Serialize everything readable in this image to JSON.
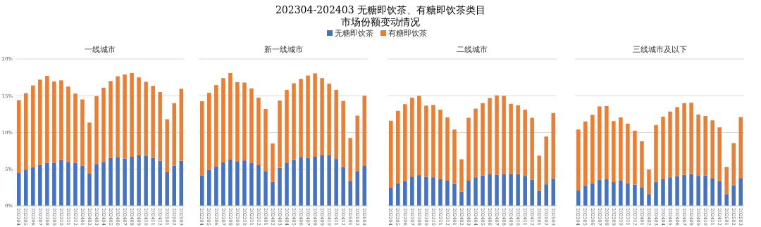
{
  "chart_data": [
    {
      "type": "other",
      "title": "202304-202403 无糖即饮茶、有糖即饮茶类目",
      "subtitle": "市场份额变动情况"
    },
    {
      "type": "bar",
      "title": "一线城市",
      "stacked": true,
      "grid": "y",
      "legend": "top",
      "categories": [
        "202304",
        "202305",
        "202306",
        "202307",
        "202308",
        "202309",
        "202310",
        "202311",
        "202312",
        "202401",
        "202402",
        "202403",
        "202404",
        "202405",
        "202406",
        "202407",
        "202408",
        "202409",
        "202410",
        "202411",
        "202412",
        "202501",
        "202502",
        "202503"
      ],
      "ylim": [
        0,
        20
      ],
      "yticks": [
        {
          "value": 0,
          "label": "0%"
        },
        {
          "value": 5,
          "label": "5%"
        },
        {
          "value": 10,
          "label": "10%"
        },
        {
          "value": 15,
          "label": "15%"
        },
        {
          "value": 20,
          "label": "20%"
        }
      ],
      "series": [
        {
          "name": "无糖即饮茶",
          "color": "#4472c4",
          "values": [
            4.5,
            4.95,
            5.25,
            5.6,
            5.85,
            5.9,
            6.25,
            6.0,
            5.85,
            5.5,
            4.45,
            5.65,
            6.0,
            6.55,
            6.6,
            6.45,
            6.7,
            6.9,
            6.8,
            6.55,
            6.15,
            4.6,
            5.5,
            6.15
          ]
        },
        {
          "name": "有糖即饮茶",
          "color": "#ed7d31",
          "values": [
            9.9,
            10.4,
            11.15,
            11.6,
            11.85,
            11.05,
            10.85,
            10.25,
            9.45,
            9.0,
            6.9,
            9.3,
            10.1,
            10.45,
            11.05,
            11.45,
            11.4,
            10.6,
            10.1,
            9.8,
            9.35,
            7.2,
            8.5,
            9.8
          ]
        }
      ]
    },
    {
      "type": "bar",
      "title": "新一线城市",
      "stacked": true,
      "grid": "y",
      "tick_labels": "x",
      "categories": [
        "202304",
        "202305",
        "202306",
        "202307",
        "202308",
        "202309",
        "202310",
        "202311",
        "202312",
        "202401",
        "202402",
        "202403",
        "202404",
        "202405",
        "202406",
        "202407",
        "202408",
        "202409",
        "202410",
        "202411",
        "202412",
        "202501",
        "202502",
        "202503"
      ],
      "ylim": [
        0,
        20
      ],
      "yticks": [
        0,
        5,
        10,
        15,
        20
      ],
      "series": [
        {
          "color": "#4472c4",
          "values": [
            4.15,
            4.9,
            5.4,
            5.95,
            6.35,
            6.1,
            6.2,
            5.9,
            5.55,
            4.75,
            3.3,
            5.2,
            5.9,
            6.25,
            6.6,
            6.55,
            6.7,
            6.9,
            6.9,
            6.4,
            5.3,
            3.35,
            4.7,
            5.45
          ]
        },
        {
          "color": "#ed7d31",
          "values": [
            10.1,
            10.5,
            11.05,
            11.45,
            11.75,
            10.75,
            10.6,
            10.1,
            9.2,
            8.45,
            5.2,
            9.15,
            9.9,
            10.45,
            10.7,
            11.2,
            11.35,
            10.5,
            9.75,
            9.4,
            9.0,
            5.9,
            7.6,
            9.55
          ]
        }
      ]
    },
    {
      "type": "bar",
      "title": "二线城市",
      "stacked": true,
      "grid": "y",
      "tick_labels": "x",
      "categories": [
        "202304",
        "202305",
        "202306",
        "202307",
        "202308",
        "202309",
        "202310",
        "202311",
        "202312",
        "202401",
        "202402",
        "202403",
        "202404",
        "202405",
        "202406",
        "202407",
        "202408",
        "202409",
        "202410",
        "202411",
        "202412",
        "202501",
        "202502",
        "202503"
      ],
      "ylim": [
        0,
        20
      ],
      "yticks": [
        0,
        5,
        10,
        15,
        20
      ],
      "series": [
        {
          "color": "#4472c4",
          "values": [
            2.5,
            3.1,
            3.4,
            4.0,
            4.2,
            3.95,
            3.9,
            3.65,
            3.45,
            3.0,
            1.95,
            3.45,
            3.9,
            4.15,
            4.3,
            4.25,
            4.3,
            4.35,
            4.35,
            4.1,
            3.55,
            2.05,
            2.95,
            3.7
          ]
        },
        {
          "color": "#ed7d31",
          "values": [
            9.1,
            9.85,
            10.45,
            10.75,
            10.8,
            9.7,
            9.85,
            9.45,
            8.6,
            7.4,
            4.4,
            8.55,
            9.35,
            9.85,
            10.4,
            10.8,
            10.7,
            9.55,
            9.35,
            9.0,
            8.45,
            4.8,
            6.5,
            8.95
          ]
        }
      ]
    },
    {
      "type": "bar",
      "title": "三线城市及以下",
      "stacked": true,
      "grid": "y",
      "tick_labels": "x",
      "categories": [
        "202304",
        "202305",
        "202306",
        "202307",
        "202308",
        "202309",
        "202310",
        "202311",
        "202312",
        "202401",
        "202402",
        "202403",
        "202404",
        "202405",
        "202406",
        "202407",
        "202408",
        "202409",
        "202410",
        "202411",
        "202412",
        "202501",
        "202502",
        "202503"
      ],
      "ylim": [
        0,
        20
      ],
      "yticks": [
        0,
        5,
        10,
        15,
        20
      ],
      "series": [
        {
          "color": "#4472c4",
          "values": [
            2.15,
            2.75,
            3.05,
            3.55,
            3.65,
            3.25,
            3.5,
            3.1,
            2.9,
            2.55,
            1.6,
            3.3,
            3.65,
            3.9,
            4.05,
            4.25,
            4.35,
            4.1,
            4.15,
            3.8,
            3.4,
            1.6,
            2.8,
            3.8
          ]
        },
        {
          "color": "#ed7d31",
          "values": [
            8.25,
            8.75,
            9.35,
            10.0,
            9.95,
            8.3,
            8.55,
            8.1,
            7.35,
            6.25,
            3.35,
            7.7,
            8.5,
            8.95,
            9.4,
            9.75,
            9.7,
            8.35,
            8.1,
            7.85,
            7.3,
            3.7,
            5.75,
            8.3
          ]
        }
      ]
    }
  ]
}
